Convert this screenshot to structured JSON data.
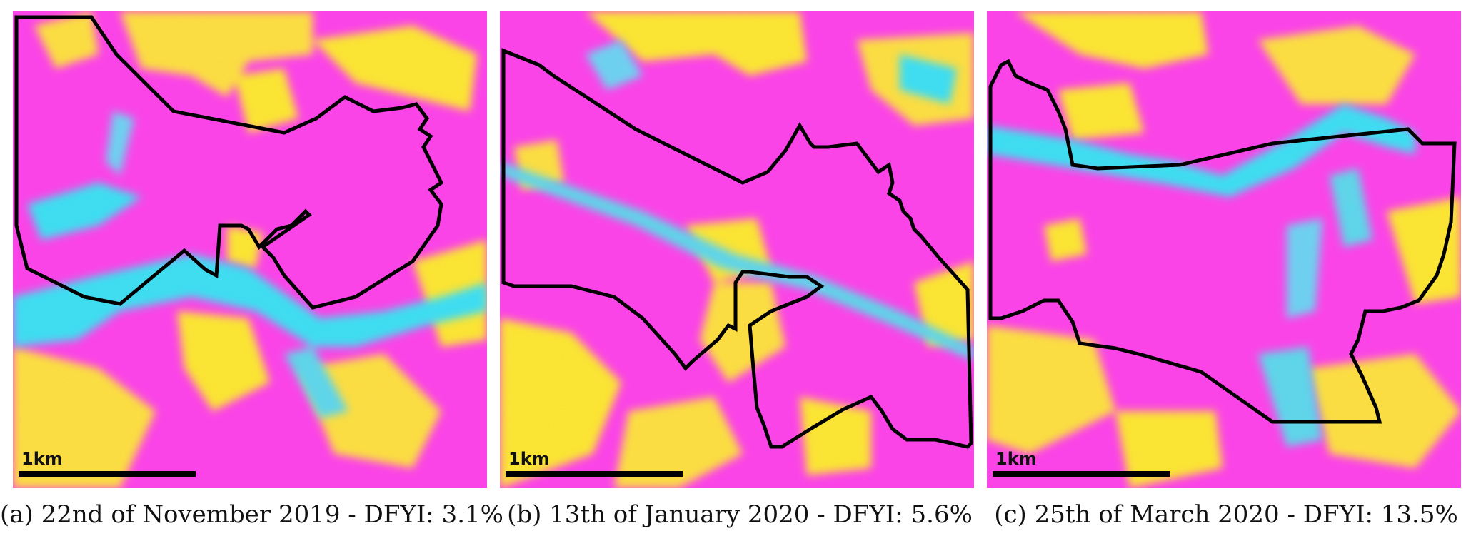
{
  "colors": {
    "magenta": "#ff3fe6",
    "yellow": "#ffee22",
    "cyan": "#33e6f0",
    "outline": "#000000"
  },
  "panels": [
    {
      "scalebar_label": "1km",
      "caption": "(a) 22nd of November 2019 - DFYI: 3.1%"
    },
    {
      "scalebar_label": "1km",
      "caption": "(b) 13th of January 2020 - DFYI: 5.6%"
    },
    {
      "scalebar_label": "1km",
      "caption": "(c) 25th of March 2020 - DFYI: 13.5%"
    }
  ]
}
